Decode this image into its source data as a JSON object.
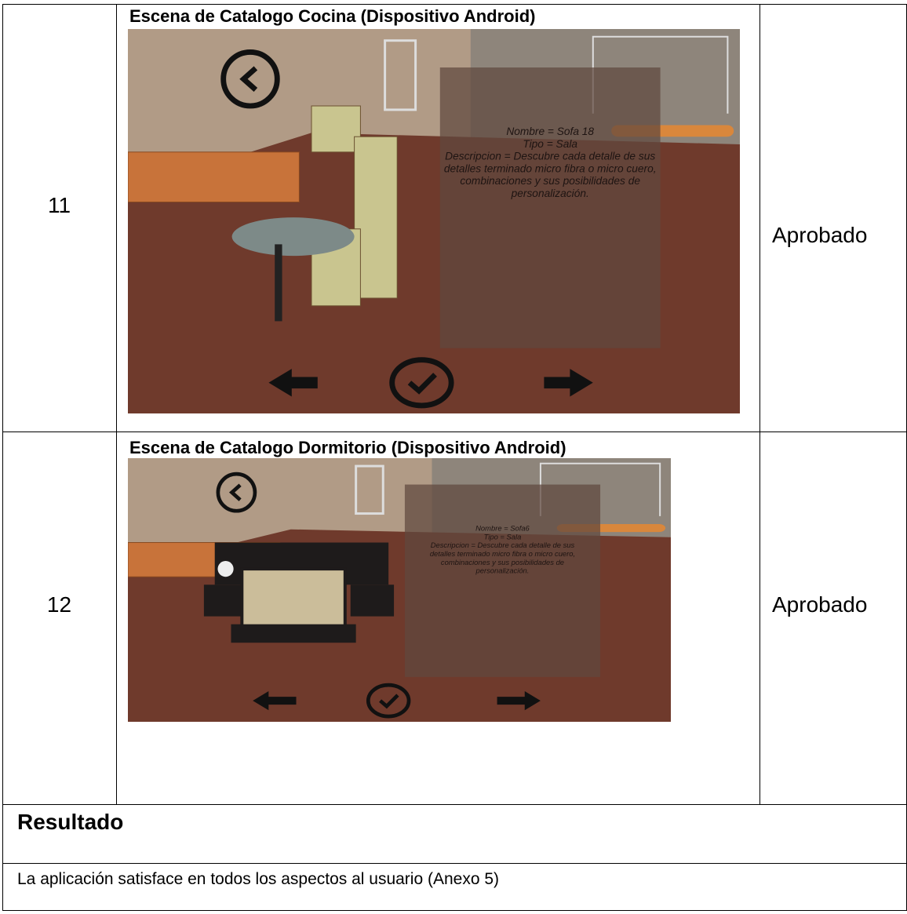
{
  "table": {
    "rows": [
      {
        "id": "11",
        "scene": {
          "title": "Escena de Catalogo Cocina (Dispositivo Android)",
          "info": [
            "Nombre = Sofa 18",
            "Tipo = Sala",
            "Descripcion = Descubre cada detalle de sus",
            "detalles terminado micro fibra o micro cuero,",
            "combinaciones y sus posibilidades de",
            "personalización."
          ]
        },
        "status": "Aprobado"
      },
      {
        "id": "12",
        "scene": {
          "title": "Escena de Catalogo Dormitorio (Dispositivo Android)",
          "info": [
            "Nombre = Sofa6",
            "Tipo = Sala",
            "Descripcion = Descubre cada detalle de sus",
            "detalles terminado micro fibra o micro cuero,",
            "combinaciones y sus posibilidades de",
            "personalización."
          ]
        },
        "status": "Aprobado"
      }
    ]
  },
  "result": {
    "heading": "Resultado",
    "text": "La aplicación satisface en todos los aspectos al usuario (Anexo 5)"
  }
}
